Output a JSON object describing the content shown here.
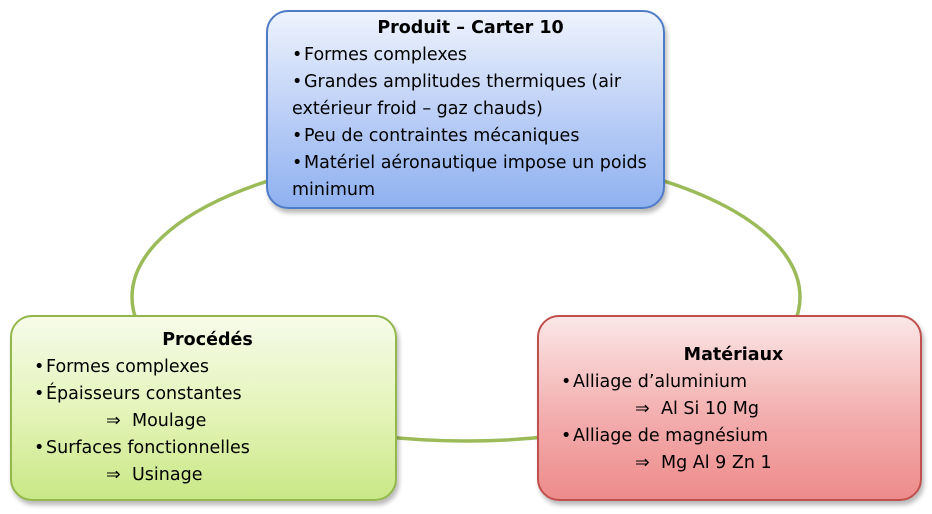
{
  "produit": {
    "title": "Produit – Carter 10",
    "items": [
      "Formes complexes",
      "Grandes amplitudes thermiques (air extérieur froid – gaz chauds)",
      "Peu de contraintes mécaniques",
      "Matériel aéronautique impose un poids minimum"
    ]
  },
  "procedes": {
    "title": "Procédés",
    "item1": "Formes complexes",
    "item2": "Épaisseurs constantes",
    "result1": "Moulage",
    "item3": "Surfaces fonctionnelles",
    "result2": "Usinage"
  },
  "materiaux": {
    "title": "Matériaux",
    "item1": "Alliage d’aluminium",
    "result1": "Al Si 10 Mg",
    "item2": "Alliage de magnésium",
    "result2": "Mg Al 9 Zn 1"
  },
  "symbols": {
    "bullet": "•",
    "implies": "⇒"
  },
  "colors": {
    "connector": "#9bbb59",
    "produit_border": "#4f7bc6",
    "procedes_border": "#93b74b",
    "materiaux_border": "#c0504d"
  }
}
